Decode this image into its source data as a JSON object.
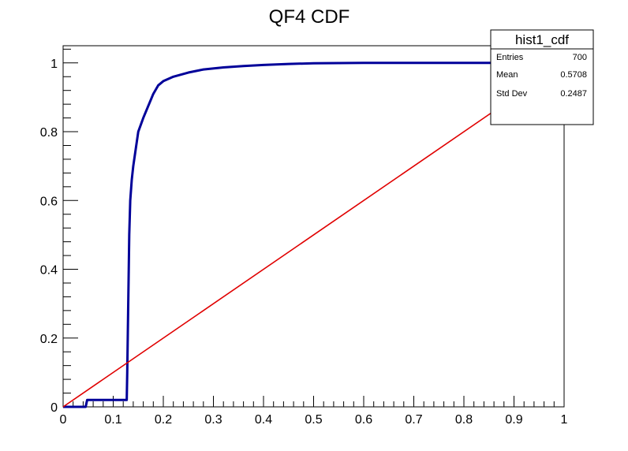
{
  "chart_data": {
    "type": "line",
    "title": "QF4 CDF",
    "xlabel": "",
    "ylabel": "",
    "xlim": [
      0,
      1
    ],
    "ylim": [
      0,
      1.05
    ],
    "grid": false,
    "x_ticks": [
      {
        "value": 0,
        "label": "0"
      },
      {
        "value": 0.1,
        "label": "0.1"
      },
      {
        "value": 0.2,
        "label": "0.2"
      },
      {
        "value": 0.3,
        "label": "0.3"
      },
      {
        "value": 0.4,
        "label": "0.4"
      },
      {
        "value": 0.5,
        "label": "0.5"
      },
      {
        "value": 0.6,
        "label": "0.6"
      },
      {
        "value": 0.7,
        "label": "0.7"
      },
      {
        "value": 0.8,
        "label": "0.8"
      },
      {
        "value": 0.9,
        "label": "0.9"
      },
      {
        "value": 1,
        "label": "1"
      }
    ],
    "y_ticks": [
      {
        "value": 0,
        "label": "0"
      },
      {
        "value": 0.2,
        "label": "0.2"
      },
      {
        "value": 0.4,
        "label": "0.4"
      },
      {
        "value": 0.6,
        "label": "0.6"
      },
      {
        "value": 0.8,
        "label": "0.8"
      },
      {
        "value": 1,
        "label": "1"
      }
    ],
    "series": [
      {
        "color": "#000099",
        "points": [
          [
            0,
            0
          ],
          [
            0.045,
            0
          ],
          [
            0.048,
            0.02
          ],
          [
            0.053,
            0.02
          ],
          [
            0.127,
            0.02
          ],
          [
            0.128,
            0.1
          ],
          [
            0.129,
            0.2
          ],
          [
            0.13,
            0.3
          ],
          [
            0.131,
            0.4
          ],
          [
            0.132,
            0.5
          ],
          [
            0.134,
            0.6
          ],
          [
            0.137,
            0.66
          ],
          [
            0.14,
            0.7
          ],
          [
            0.145,
            0.75
          ],
          [
            0.15,
            0.8
          ],
          [
            0.16,
            0.84
          ],
          [
            0.17,
            0.875
          ],
          [
            0.18,
            0.91
          ],
          [
            0.19,
            0.935
          ],
          [
            0.2,
            0.947
          ],
          [
            0.22,
            0.96
          ],
          [
            0.25,
            0.972
          ],
          [
            0.28,
            0.981
          ],
          [
            0.32,
            0.987
          ],
          [
            0.36,
            0.991
          ],
          [
            0.4,
            0.994
          ],
          [
            0.45,
            0.997
          ],
          [
            0.5,
            0.999
          ],
          [
            0.6,
            1.0
          ],
          [
            0.7,
            1.0
          ],
          [
            0.8,
            1.0
          ],
          [
            0.9,
            1.0
          ],
          [
            1.0,
            1.0
          ]
        ]
      },
      {
        "color": "#e00000",
        "points": [
          [
            0,
            0
          ],
          [
            1,
            1
          ]
        ]
      }
    ],
    "legend_position": "top-right",
    "stats_box": {
      "title": "hist1_cdf",
      "rows": [
        {
          "label": "Entries",
          "value": "700"
        },
        {
          "label": "Mean",
          "value": "0.5708"
        },
        {
          "label": "Std Dev",
          "value": "0.2487"
        }
      ]
    }
  }
}
